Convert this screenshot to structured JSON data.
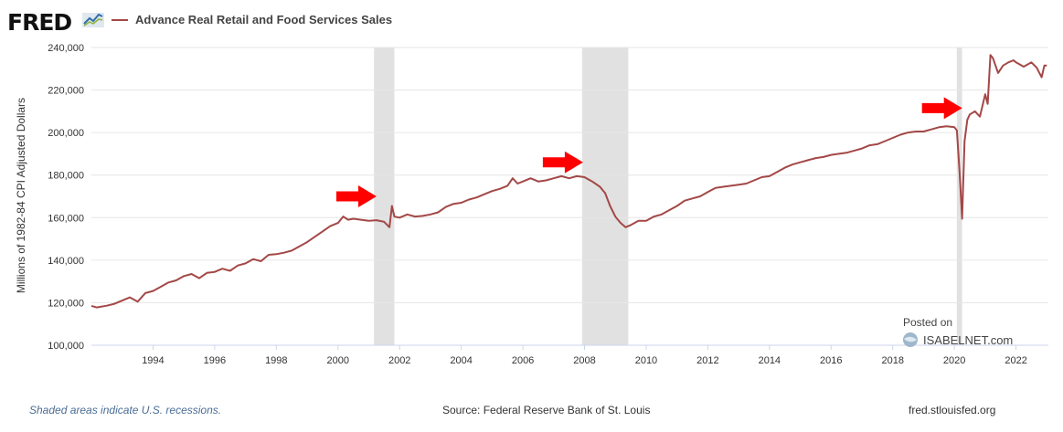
{
  "header": {
    "logo_text": "FRED",
    "legend_label": "Advance Real Retail and Food Services Sales",
    "series_color": "#a34847"
  },
  "footer": {
    "note": "Shaded areas indicate U.S. recessions.",
    "source": "Source: Federal Reserve Bank of St. Louis",
    "site": "fred.stlouisfed.org"
  },
  "watermark": {
    "posted": "Posted on",
    "brand": "ISABELNET.com"
  },
  "chart_data": {
    "type": "line",
    "title": "Advance Real Retail and Food Services Sales",
    "xlabel": "",
    "ylabel": "Millions of 1982-84 CPI Adjusted Dollars",
    "xlim": [
      1992.0,
      2023.05
    ],
    "ylim": [
      100000,
      240000
    ],
    "x_ticks": [
      1994,
      1996,
      1998,
      2000,
      2002,
      2004,
      2006,
      2008,
      2010,
      2012,
      2014,
      2016,
      2018,
      2020,
      2022
    ],
    "y_ticks": [
      {
        "value": 100000,
        "label": "100,000"
      },
      {
        "value": 120000,
        "label": "120,000"
      },
      {
        "value": 140000,
        "label": "140,000"
      },
      {
        "value": 160000,
        "label": "160,000"
      },
      {
        "value": 180000,
        "label": "180,000"
      },
      {
        "value": 200000,
        "label": "200,000"
      },
      {
        "value": 220000,
        "label": "220,000"
      },
      {
        "value": 240000,
        "label": "240,000"
      }
    ],
    "recessions": [
      {
        "start": 2001.17,
        "end": 2001.83
      },
      {
        "start": 2007.92,
        "end": 2009.42
      },
      {
        "start": 2020.08,
        "end": 2020.25
      }
    ],
    "annotations": [
      {
        "type": "arrow",
        "x": 2000.6,
        "y": 170000,
        "color": "#ff0000"
      },
      {
        "type": "arrow",
        "x": 2007.3,
        "y": 186000,
        "color": "#ff0000"
      },
      {
        "type": "arrow",
        "x": 2019.6,
        "y": 211500,
        "color": "#ff0000"
      }
    ],
    "series": [
      {
        "name": "Advance Real Retail and Food Services Sales",
        "color": "#a34847",
        "x": [
          1992.0,
          1992.17,
          1992.5,
          1992.75,
          1993.0,
          1993.25,
          1993.5,
          1993.75,
          1994.0,
          1994.25,
          1994.5,
          1994.75,
          1995.0,
          1995.25,
          1995.5,
          1995.75,
          1996.0,
          1996.25,
          1996.5,
          1996.75,
          1997.0,
          1997.25,
          1997.5,
          1997.75,
          1998.0,
          1998.25,
          1998.5,
          1998.75,
          1999.0,
          1999.25,
          1999.5,
          1999.75,
          2000.0,
          2000.17,
          2000.33,
          2000.5,
          2000.75,
          2001.0,
          2001.25,
          2001.5,
          2001.67,
          2001.75,
          2001.83,
          2002.0,
          2002.25,
          2002.5,
          2002.75,
          2003.0,
          2003.25,
          2003.5,
          2003.75,
          2004.0,
          2004.25,
          2004.5,
          2004.75,
          2005.0,
          2005.25,
          2005.5,
          2005.67,
          2005.83,
          2006.0,
          2006.25,
          2006.5,
          2006.75,
          2007.0,
          2007.25,
          2007.5,
          2007.75,
          2008.0,
          2008.25,
          2008.5,
          2008.67,
          2008.83,
          2009.0,
          2009.17,
          2009.33,
          2009.5,
          2009.75,
          2010.0,
          2010.25,
          2010.5,
          2010.75,
          2011.0,
          2011.25,
          2011.5,
          2011.75,
          2012.0,
          2012.25,
          2012.5,
          2012.75,
          2013.0,
          2013.25,
          2013.5,
          2013.75,
          2014.0,
          2014.25,
          2014.5,
          2014.75,
          2015.0,
          2015.25,
          2015.5,
          2015.75,
          2016.0,
          2016.25,
          2016.5,
          2016.75,
          2017.0,
          2017.25,
          2017.5,
          2017.75,
          2018.0,
          2018.25,
          2018.5,
          2018.75,
          2019.0,
          2019.25,
          2019.5,
          2019.75,
          2020.0,
          2020.08,
          2020.17,
          2020.25,
          2020.33,
          2020.42,
          2020.5,
          2020.67,
          2020.83,
          2021.0,
          2021.08,
          2021.17,
          2021.25,
          2021.42,
          2021.58,
          2021.75,
          2021.92,
          2022.0,
          2022.25,
          2022.5,
          2022.67,
          2022.83,
          2022.92,
          2023.0
        ],
        "y": [
          118500,
          117800,
          118600,
          119500,
          121000,
          122500,
          120500,
          124500,
          125500,
          127500,
          129500,
          130500,
          132500,
          133500,
          131500,
          134000,
          134500,
          136000,
          135000,
          137500,
          138500,
          140500,
          139500,
          142500,
          142800,
          143500,
          144500,
          146500,
          148500,
          151000,
          153500,
          156000,
          157500,
          160500,
          159000,
          159500,
          159000,
          158500,
          158800,
          158000,
          155500,
          165500,
          160500,
          160000,
          161500,
          160500,
          160800,
          161500,
          162500,
          165000,
          166500,
          167000,
          168500,
          169500,
          171000,
          172500,
          173500,
          175000,
          178500,
          176000,
          177000,
          178500,
          177000,
          177500,
          178500,
          179500,
          178500,
          179500,
          179000,
          177000,
          174500,
          171500,
          165500,
          160500,
          157500,
          155500,
          156500,
          158500,
          158500,
          160500,
          161500,
          163500,
          165500,
          168000,
          169000,
          170000,
          172000,
          174000,
          174500,
          175000,
          175500,
          176000,
          177500,
          179000,
          179500,
          181500,
          183500,
          185000,
          186000,
          187000,
          188000,
          188500,
          189500,
          190000,
          190500,
          191500,
          192500,
          194000,
          194500,
          196000,
          197500,
          199000,
          200000,
          200500,
          200500,
          201500,
          202500,
          203000,
          202500,
          201000,
          181000,
          159500,
          196000,
          206000,
          208500,
          210000,
          207500,
          218000,
          213500,
          236500,
          235000,
          228000,
          231500,
          233000,
          234000,
          233000,
          231000,
          233000,
          230500,
          226000,
          231500,
          231500
        ]
      }
    ]
  }
}
